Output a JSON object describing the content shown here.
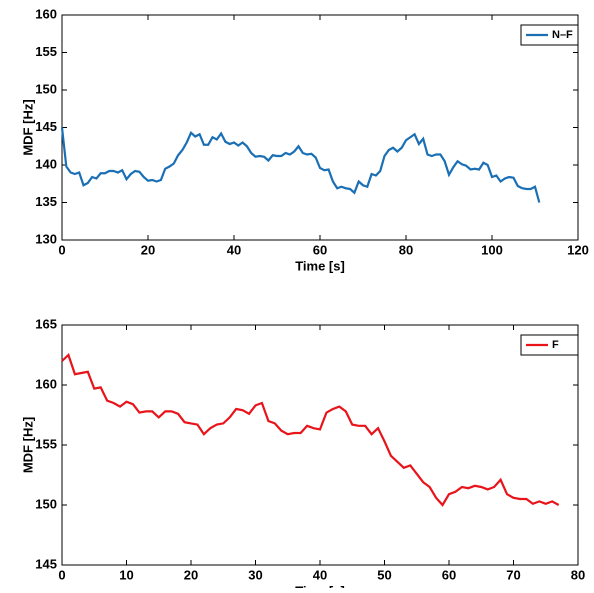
{
  "chart_data": [
    {
      "type": "line",
      "xlabel": "Time [s]",
      "ylabel": "MDF [Hz]",
      "xlim": [
        0,
        120
      ],
      "xticks": [
        0,
        20,
        40,
        60,
        80,
        100,
        120
      ],
      "ylim": [
        130,
        160
      ],
      "yticks": [
        130,
        135,
        140,
        145,
        150,
        155,
        160
      ],
      "legend": "northeast",
      "x": [
        0,
        1,
        2,
        3,
        4,
        5,
        6,
        7,
        8,
        9,
        10,
        11,
        12,
        13,
        14,
        15,
        16,
        17,
        18,
        19,
        20,
        21,
        22,
        23,
        24,
        25,
        26,
        27,
        28,
        29,
        30,
        31,
        32,
        33,
        34,
        35,
        36,
        37,
        38,
        39,
        40,
        41,
        42,
        43,
        44,
        45,
        46,
        47,
        48,
        49,
        50,
        51,
        52,
        53,
        54,
        55,
        56,
        57,
        58,
        59,
        60,
        61,
        62,
        63,
        64,
        65,
        66,
        67,
        68,
        69,
        70,
        71,
        72,
        73,
        74,
        75,
        76,
        77,
        78,
        79,
        80,
        81,
        82,
        83,
        84,
        85,
        86,
        87,
        88,
        89,
        90,
        91,
        92,
        93,
        94,
        95,
        96,
        97,
        98,
        99,
        100,
        101,
        102,
        103,
        104,
        105,
        106,
        107,
        108,
        109,
        110,
        111
      ],
      "series": [
        {
          "name": "N–F",
          "color": "#1a6fb5",
          "values": [
            145,
            139.8,
            139,
            138.8,
            139,
            137.3,
            137.6,
            138.4,
            138.2,
            138.9,
            138.9,
            139.2,
            139.2,
            139,
            139.3,
            138.1,
            138.8,
            139.2,
            139.1,
            138.4,
            137.9,
            138,
            137.8,
            138,
            139.5,
            139.8,
            140.2,
            141.3,
            142,
            143,
            144.3,
            143.8,
            144.1,
            142.7,
            142.7,
            143.7,
            143.4,
            144.2,
            143.1,
            142.8,
            143,
            142.6,
            143,
            142.5,
            141.6,
            141.1,
            141.2,
            141.1,
            140.6,
            141.3,
            141.2,
            141.2,
            141.6,
            141.4,
            141.8,
            142.5,
            141.6,
            141.4,
            141.5,
            141,
            139.6,
            139.3,
            139.4,
            137.8,
            136.9,
            137.1,
            136.9,
            136.8,
            136.3,
            137.8,
            137.3,
            137.1,
            138.8,
            138.6,
            139.2,
            141.2,
            142,
            142.3,
            141.8,
            142.3,
            143.3,
            143.7,
            144.1,
            142.8,
            143.5,
            141.4,
            141.2,
            141.4,
            141.4,
            140.5,
            138.7,
            139.7,
            140.5,
            140.1,
            139.9,
            139.4,
            139.5,
            139.4,
            140.3,
            140,
            138.4,
            138.6,
            137.8,
            138.2,
            138.4,
            138.3,
            137.2,
            136.9,
            136.8,
            136.8,
            137.1,
            135
          ]
        }
      ]
    },
    {
      "type": "line",
      "xlabel": "Time [s]",
      "ylabel": "MDF [Hz]",
      "xlim": [
        0,
        80
      ],
      "xticks": [
        0,
        10,
        20,
        30,
        40,
        50,
        60,
        70,
        80
      ],
      "ylim": [
        145,
        165
      ],
      "yticks": [
        145,
        150,
        155,
        160,
        165
      ],
      "legend": "northeast",
      "x": [
        0,
        1,
        2,
        3,
        4,
        5,
        6,
        7,
        8,
        9,
        10,
        11,
        12,
        13,
        14,
        15,
        16,
        17,
        18,
        19,
        20,
        21,
        22,
        23,
        24,
        25,
        26,
        27,
        28,
        29,
        30,
        31,
        32,
        33,
        34,
        35,
        36,
        37,
        38,
        39,
        40,
        41,
        42,
        43,
        44,
        45,
        46,
        47,
        48,
        49,
        50,
        51,
        52,
        53,
        54,
        55,
        56,
        57,
        58,
        59,
        60,
        61,
        62,
        63,
        64,
        65,
        66,
        67,
        68,
        69,
        70,
        71,
        72,
        73,
        74,
        75,
        76,
        77
      ],
      "series": [
        {
          "name": "F",
          "color": "#e8141a",
          "values": [
            162,
            162.5,
            160.9,
            161,
            161.1,
            159.7,
            159.8,
            158.7,
            158.5,
            158.2,
            158.6,
            158.4,
            157.7,
            157.8,
            157.8,
            157.3,
            157.8,
            157.8,
            157.6,
            156.9,
            156.8,
            156.7,
            155.9,
            156.4,
            156.7,
            156.8,
            157.3,
            158,
            157.9,
            157.6,
            158.3,
            158.5,
            157,
            156.8,
            156.2,
            155.9,
            156,
            156,
            156.6,
            156.4,
            156.3,
            157.7,
            158,
            158.2,
            157.8,
            156.7,
            156.6,
            156.6,
            155.9,
            156.4,
            155.3,
            154.1,
            153.6,
            153.1,
            153.3,
            152.6,
            151.9,
            151.5,
            150.6,
            150,
            150.9,
            151.1,
            151.5,
            151.4,
            151.6,
            151.5,
            151.3,
            151.5,
            152.1,
            150.9,
            150.6,
            150.5,
            150.5,
            150.1,
            150.3,
            150.1,
            150.3,
            150
          ]
        }
      ]
    }
  ]
}
